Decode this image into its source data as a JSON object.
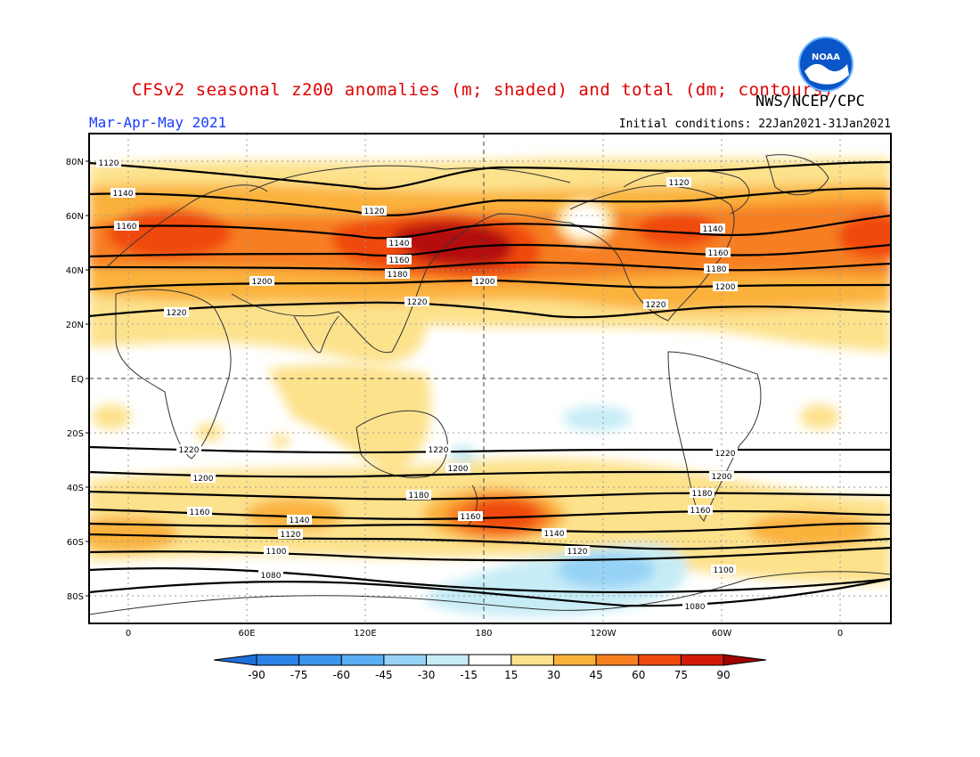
{
  "title": "CFSv2 seasonal z200 anomalies (m; shaded) and total (dm; contours)",
  "agency": "NWS/NCEP/CPC",
  "logo_text": "NOAA",
  "season": "Mar-Apr-May 2021",
  "initial_conditions": "Initial conditions: 22Jan2021-31Jan2021",
  "lat_labels": [
    "80N",
    "60N",
    "40N",
    "20N",
    "EQ",
    "20S",
    "40S",
    "60S",
    "80S"
  ],
  "lon_labels": [
    "0",
    "60E",
    "120E",
    "180",
    "120W",
    "60W",
    "0"
  ],
  "colorbar": {
    "labels": [
      "-90",
      "-75",
      "-60",
      "-45",
      "-30",
      "-15",
      "15",
      "30",
      "45",
      "60",
      "75",
      "90"
    ],
    "colors": [
      "#1e6fdc",
      "#2c82e6",
      "#3c95ec",
      "#5aaef2",
      "#96d2f6",
      "#c6ecf6",
      "#ffffff",
      "#fde28c",
      "#fbb23c",
      "#f77f20",
      "#f04a10",
      "#d21a0a",
      "#a00000"
    ]
  },
  "contour_labels": [
    "1080",
    "1100",
    "1120",
    "1140",
    "1160",
    "1180",
    "1200",
    "1220"
  ]
}
